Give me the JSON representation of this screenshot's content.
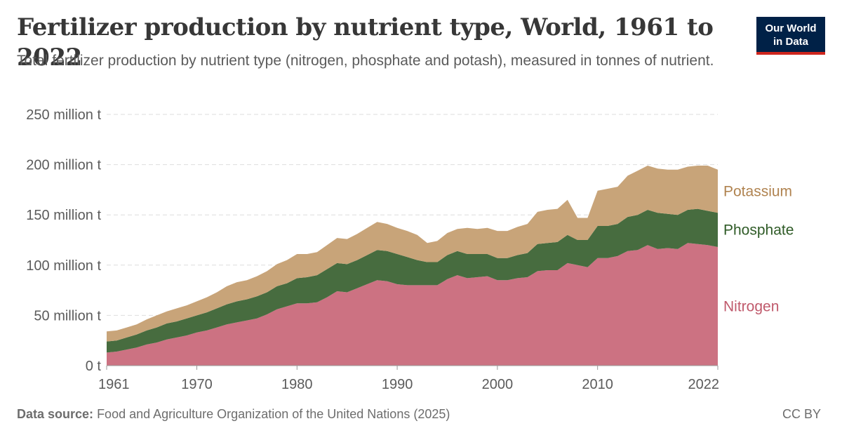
{
  "header": {
    "title": "Fertilizer production by nutrient type, World, 1961 to 2022",
    "subtitle": "Total fertilizer production by nutrient type (nitrogen, phosphate and potash), measured in tonnes of nutrient."
  },
  "logo": {
    "line1": "Our World",
    "line2": "in Data",
    "bg_color": "#002147",
    "accent_color": "#ce261e"
  },
  "footer": {
    "source_label": "Data source:",
    "source_text": "Food and Agriculture Organization of the United Nations (2025)",
    "license": "CC BY"
  },
  "chart_data": {
    "type": "area",
    "stacked": true,
    "title": "Fertilizer production by nutrient type, World, 1961 to 2022",
    "ylim": [
      0,
      250
    ],
    "y_unit": "million t",
    "y_ticks": [
      0,
      50,
      100,
      150,
      200,
      250
    ],
    "y_tick_labels": [
      "0 t",
      "50 million t",
      "100 million t",
      "150 million t",
      "200 million t",
      "250 million t"
    ],
    "x_ticks": [
      1961,
      1970,
      1980,
      1990,
      2000,
      2010,
      2022
    ],
    "x_tick_labels": [
      "1961",
      "1970",
      "1980",
      "1990",
      "2000",
      "2010",
      "2022"
    ],
    "grid": "horizontal dashed",
    "legend": "inline labels at right end",
    "x": [
      1961,
      1962,
      1963,
      1964,
      1965,
      1966,
      1967,
      1968,
      1969,
      1970,
      1971,
      1972,
      1973,
      1974,
      1975,
      1976,
      1977,
      1978,
      1979,
      1980,
      1981,
      1982,
      1983,
      1984,
      1985,
      1986,
      1987,
      1988,
      1989,
      1990,
      1991,
      1992,
      1993,
      1994,
      1995,
      1996,
      1997,
      1998,
      1999,
      2000,
      2001,
      2002,
      2003,
      2004,
      2005,
      2006,
      2007,
      2008,
      2009,
      2010,
      2011,
      2012,
      2013,
      2014,
      2015,
      2016,
      2017,
      2018,
      2019,
      2020,
      2021,
      2022
    ],
    "series": [
      {
        "name": "Nitrogen",
        "color": "#cc7282",
        "label_color": "#c05a6c",
        "values": [
          13,
          14,
          16,
          18,
          21,
          23,
          26,
          28,
          30,
          33,
          35,
          38,
          41,
          43,
          45,
          47,
          51,
          56,
          59,
          62,
          62,
          63,
          68,
          74,
          73,
          77,
          81,
          85,
          84,
          81,
          80,
          80,
          80,
          80,
          86,
          90,
          87,
          88,
          89,
          85,
          85,
          87,
          88,
          94,
          95,
          95,
          102,
          100,
          98,
          107,
          107,
          109,
          114,
          115,
          120,
          116,
          117,
          116,
          122,
          121,
          120,
          118
        ]
      },
      {
        "name": "Phosphate",
        "color": "#476c3f",
        "label_color": "#2f5b27",
        "values": [
          11,
          11,
          12,
          13,
          14,
          15,
          16,
          16,
          17,
          17,
          18,
          19,
          20,
          21,
          21,
          22,
          22,
          23,
          23,
          25,
          26,
          27,
          28,
          28,
          28,
          28,
          29,
          30,
          30,
          30,
          28,
          25,
          23,
          23,
          24,
          24,
          24,
          23,
          22,
          22,
          22,
          23,
          24,
          27,
          27,
          28,
          28,
          25,
          27,
          32,
          32,
          32,
          34,
          35,
          35,
          36,
          34,
          34,
          33,
          35,
          34,
          34
        ]
      },
      {
        "name": "Potassium",
        "color": "#c8a479",
        "label_color": "#b08350",
        "values": [
          10,
          10,
          10,
          10,
          11,
          12,
          12,
          13,
          13,
          14,
          15,
          16,
          18,
          19,
          19,
          20,
          21,
          22,
          23,
          24,
          23,
          23,
          24,
          25,
          25,
          26,
          27,
          28,
          27,
          26,
          26,
          25,
          19,
          21,
          22,
          22,
          26,
          25,
          26,
          27,
          27,
          28,
          29,
          32,
          33,
          33,
          35,
          22,
          22,
          35,
          37,
          37,
          41,
          44,
          44,
          44,
          44,
          45,
          43,
          43,
          45,
          43
        ]
      }
    ]
  }
}
